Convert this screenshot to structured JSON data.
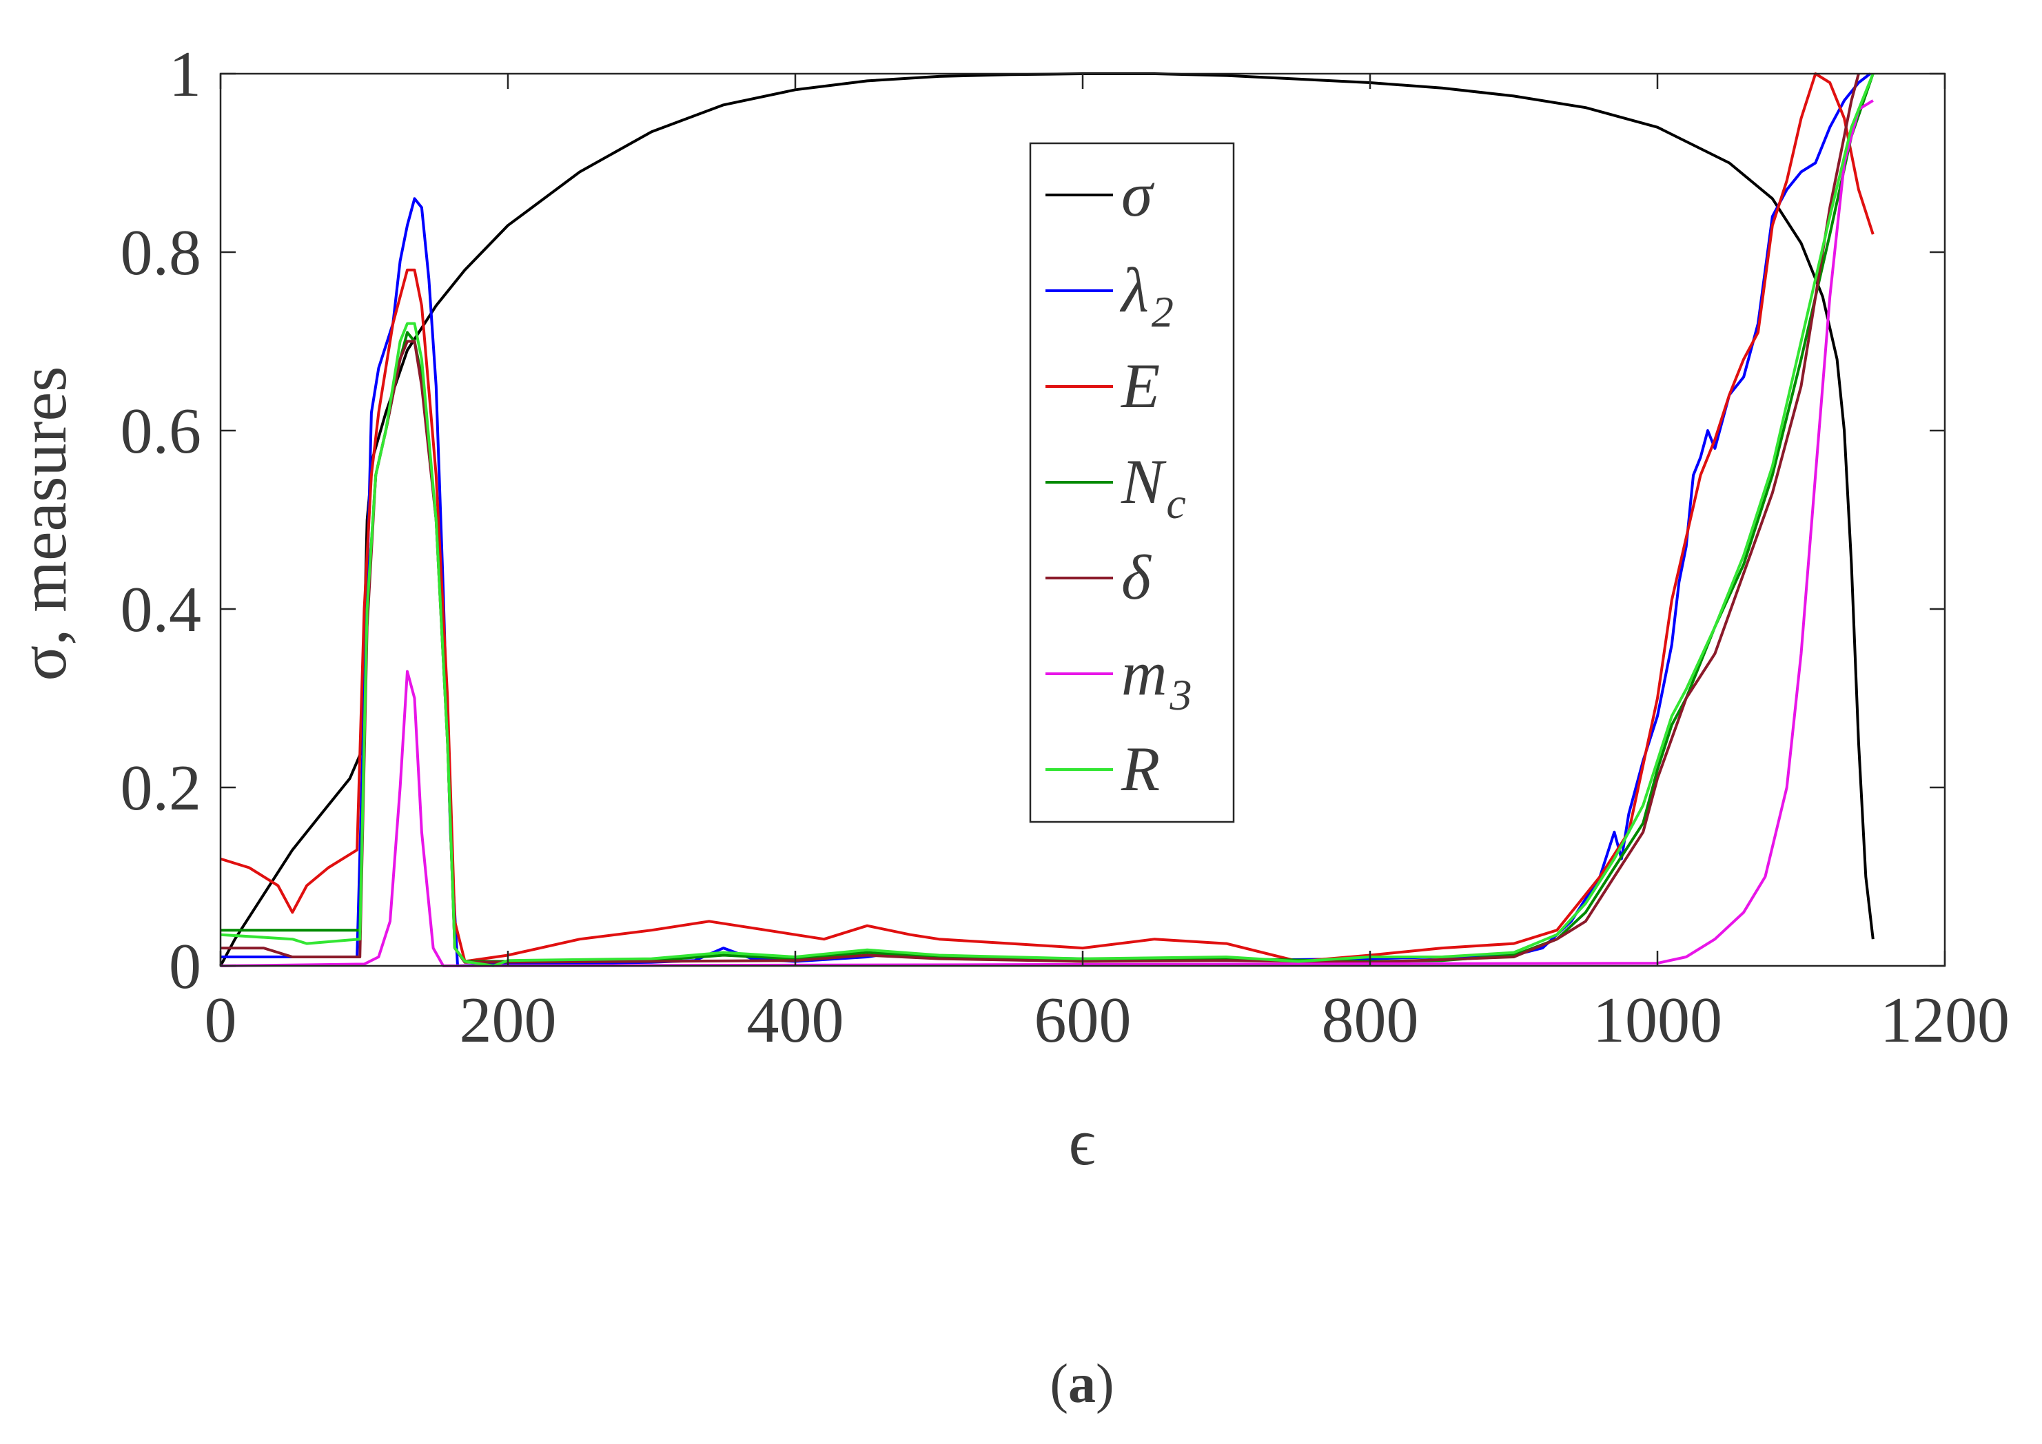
{
  "chart_data": {
    "type": "line",
    "title": "",
    "xlabel": "ϵ",
    "ylabel": "σ, measures",
    "xlim": [
      0,
      1200
    ],
    "ylim": [
      0,
      1
    ],
    "xticks": [
      "0",
      "200",
      "400",
      "600",
      "800",
      "1000",
      "1200"
    ],
    "yticks": [
      "0",
      "0.2",
      "0.4",
      "0.6",
      "0.8",
      "1"
    ],
    "grid": false,
    "legend_position": "top-center",
    "caption": "(a)",
    "caption_letter": "a",
    "series": [
      {
        "name": "σ",
        "sub": "",
        "color": "#000000",
        "points": [
          [
            0,
            0
          ],
          [
            10,
            0.03
          ],
          [
            30,
            0.08
          ],
          [
            50,
            0.13
          ],
          [
            70,
            0.17
          ],
          [
            90,
            0.21
          ],
          [
            98,
            0.24
          ],
          [
            102,
            0.5
          ],
          [
            106,
            0.57
          ],
          [
            115,
            0.62
          ],
          [
            130,
            0.69
          ],
          [
            150,
            0.74
          ],
          [
            170,
            0.78
          ],
          [
            200,
            0.83
          ],
          [
            250,
            0.89
          ],
          [
            300,
            0.935
          ],
          [
            350,
            0.965
          ],
          [
            400,
            0.982
          ],
          [
            450,
            0.992
          ],
          [
            500,
            0.997
          ],
          [
            550,
            0.999
          ],
          [
            600,
            1.0
          ],
          [
            650,
            1.0
          ],
          [
            700,
            0.998
          ],
          [
            750,
            0.994
          ],
          [
            800,
            0.99
          ],
          [
            850,
            0.984
          ],
          [
            900,
            0.975
          ],
          [
            950,
            0.962
          ],
          [
            1000,
            0.94
          ],
          [
            1050,
            0.9
          ],
          [
            1080,
            0.86
          ],
          [
            1100,
            0.81
          ],
          [
            1115,
            0.75
          ],
          [
            1125,
            0.68
          ],
          [
            1130,
            0.6
          ],
          [
            1135,
            0.45
          ],
          [
            1140,
            0.25
          ],
          [
            1145,
            0.1
          ],
          [
            1150,
            0.03
          ]
        ]
      },
      {
        "name": "λ",
        "sub": "2",
        "color": "#0000ff",
        "points": [
          [
            0,
            0.01
          ],
          [
            50,
            0.01
          ],
          [
            95,
            0.01
          ],
          [
            100,
            0.3
          ],
          [
            105,
            0.62
          ],
          [
            110,
            0.67
          ],
          [
            120,
            0.72
          ],
          [
            125,
            0.79
          ],
          [
            130,
            0.83
          ],
          [
            135,
            0.86
          ],
          [
            140,
            0.85
          ],
          [
            145,
            0.77
          ],
          [
            150,
            0.65
          ],
          [
            155,
            0.42
          ],
          [
            160,
            0.15
          ],
          [
            165,
            0
          ],
          [
            200,
            0.002
          ],
          [
            300,
            0.004
          ],
          [
            330,
            0.006
          ],
          [
            350,
            0.02
          ],
          [
            370,
            0.008
          ],
          [
            400,
            0.005
          ],
          [
            450,
            0.01
          ],
          [
            470,
            0.015
          ],
          [
            500,
            0.01
          ],
          [
            600,
            0.008
          ],
          [
            700,
            0.006
          ],
          [
            800,
            0.008
          ],
          [
            900,
            0.012
          ],
          [
            920,
            0.02
          ],
          [
            940,
            0.05
          ],
          [
            960,
            0.1
          ],
          [
            970,
            0.15
          ],
          [
            975,
            0.12
          ],
          [
            980,
            0.17
          ],
          [
            990,
            0.23
          ],
          [
            1000,
            0.28
          ],
          [
            1010,
            0.36
          ],
          [
            1015,
            0.43
          ],
          [
            1020,
            0.47
          ],
          [
            1025,
            0.55
          ],
          [
            1030,
            0.57
          ],
          [
            1035,
            0.6
          ],
          [
            1040,
            0.58
          ],
          [
            1050,
            0.64
          ],
          [
            1060,
            0.66
          ],
          [
            1070,
            0.72
          ],
          [
            1080,
            0.84
          ],
          [
            1090,
            0.87
          ],
          [
            1100,
            0.89
          ],
          [
            1110,
            0.9
          ],
          [
            1120,
            0.94
          ],
          [
            1130,
            0.97
          ],
          [
            1140,
            0.99
          ],
          [
            1148,
            1.0
          ]
        ]
      },
      {
        "name": "E",
        "sub": "",
        "color": "#e01010",
        "points": [
          [
            0,
            0.12
          ],
          [
            20,
            0.11
          ],
          [
            40,
            0.09
          ],
          [
            50,
            0.06
          ],
          [
            60,
            0.09
          ],
          [
            75,
            0.11
          ],
          [
            95,
            0.13
          ],
          [
            100,
            0.4
          ],
          [
            105,
            0.55
          ],
          [
            110,
            0.62
          ],
          [
            120,
            0.72
          ],
          [
            130,
            0.78
          ],
          [
            135,
            0.78
          ],
          [
            140,
            0.74
          ],
          [
            150,
            0.55
          ],
          [
            158,
            0.3
          ],
          [
            163,
            0.05
          ],
          [
            170,
            0.005
          ],
          [
            200,
            0.012
          ],
          [
            250,
            0.03
          ],
          [
            300,
            0.04
          ],
          [
            340,
            0.05
          ],
          [
            380,
            0.04
          ],
          [
            420,
            0.03
          ],
          [
            450,
            0.045
          ],
          [
            480,
            0.035
          ],
          [
            500,
            0.03
          ],
          [
            550,
            0.025
          ],
          [
            600,
            0.02
          ],
          [
            650,
            0.03
          ],
          [
            700,
            0.025
          ],
          [
            750,
            0.005
          ],
          [
            800,
            0.012
          ],
          [
            850,
            0.02
          ],
          [
            900,
            0.025
          ],
          [
            930,
            0.04
          ],
          [
            960,
            0.1
          ],
          [
            980,
            0.15
          ],
          [
            1000,
            0.3
          ],
          [
            1010,
            0.41
          ],
          [
            1020,
            0.48
          ],
          [
            1030,
            0.55
          ],
          [
            1040,
            0.59
          ],
          [
            1050,
            0.64
          ],
          [
            1060,
            0.68
          ],
          [
            1070,
            0.71
          ],
          [
            1080,
            0.83
          ],
          [
            1090,
            0.88
          ],
          [
            1100,
            0.95
          ],
          [
            1110,
            1.0
          ],
          [
            1120,
            0.99
          ],
          [
            1130,
            0.95
          ],
          [
            1140,
            0.87
          ],
          [
            1150,
            0.82
          ]
        ]
      },
      {
        "name": "N",
        "sub": "c",
        "color": "#008a00",
        "points": [
          [
            0,
            0.04
          ],
          [
            50,
            0.04
          ],
          [
            97,
            0.04
          ],
          [
            102,
            0.4
          ],
          [
            108,
            0.55
          ],
          [
            115,
            0.6
          ],
          [
            125,
            0.68
          ],
          [
            130,
            0.71
          ],
          [
            135,
            0.7
          ],
          [
            140,
            0.66
          ],
          [
            150,
            0.5
          ],
          [
            158,
            0.25
          ],
          [
            163,
            0.02
          ],
          [
            170,
            0.005
          ],
          [
            200,
            0.005
          ],
          [
            300,
            0.006
          ],
          [
            350,
            0.012
          ],
          [
            400,
            0.008
          ],
          [
            450,
            0.015
          ],
          [
            500,
            0.01
          ],
          [
            600,
            0.005
          ],
          [
            700,
            0.008
          ],
          [
            800,
            0.005
          ],
          [
            850,
            0.006
          ],
          [
            900,
            0.012
          ],
          [
            930,
            0.03
          ],
          [
            950,
            0.06
          ],
          [
            970,
            0.11
          ],
          [
            990,
            0.16
          ],
          [
            1000,
            0.22
          ],
          [
            1010,
            0.27
          ],
          [
            1020,
            0.3
          ],
          [
            1040,
            0.38
          ],
          [
            1060,
            0.45
          ],
          [
            1080,
            0.55
          ],
          [
            1100,
            0.68
          ],
          [
            1120,
            0.82
          ],
          [
            1135,
            0.93
          ],
          [
            1150,
            1.0
          ]
        ]
      },
      {
        "name": "δ",
        "sub": "",
        "color": "#8b1a2a",
        "points": [
          [
            0,
            0.02
          ],
          [
            30,
            0.02
          ],
          [
            50,
            0.01
          ],
          [
            80,
            0.01
          ],
          [
            97,
            0.01
          ],
          [
            102,
            0.38
          ],
          [
            108,
            0.55
          ],
          [
            115,
            0.6
          ],
          [
            125,
            0.68
          ],
          [
            130,
            0.7
          ],
          [
            135,
            0.7
          ],
          [
            140,
            0.65
          ],
          [
            150,
            0.5
          ],
          [
            158,
            0.25
          ],
          [
            163,
            0.02
          ],
          [
            170,
            0.004
          ],
          [
            300,
            0.005
          ],
          [
            400,
            0.006
          ],
          [
            450,
            0.012
          ],
          [
            500,
            0.008
          ],
          [
            600,
            0.005
          ],
          [
            700,
            0.006
          ],
          [
            800,
            0.004
          ],
          [
            900,
            0.01
          ],
          [
            930,
            0.03
          ],
          [
            950,
            0.05
          ],
          [
            970,
            0.1
          ],
          [
            990,
            0.15
          ],
          [
            1000,
            0.21
          ],
          [
            1020,
            0.3
          ],
          [
            1040,
            0.35
          ],
          [
            1060,
            0.44
          ],
          [
            1080,
            0.53
          ],
          [
            1100,
            0.65
          ],
          [
            1120,
            0.85
          ],
          [
            1135,
            0.97
          ],
          [
            1140,
            1.0
          ]
        ]
      },
      {
        "name": "m",
        "sub": "3",
        "color": "#e815e8",
        "points": [
          [
            0,
            0
          ],
          [
            100,
            0.002
          ],
          [
            110,
            0.01
          ],
          [
            118,
            0.05
          ],
          [
            125,
            0.2
          ],
          [
            130,
            0.33
          ],
          [
            135,
            0.3
          ],
          [
            140,
            0.15
          ],
          [
            148,
            0.02
          ],
          [
            155,
            0
          ],
          [
            1000,
            0.003
          ],
          [
            1020,
            0.01
          ],
          [
            1040,
            0.03
          ],
          [
            1060,
            0.06
          ],
          [
            1075,
            0.1
          ],
          [
            1090,
            0.2
          ],
          [
            1100,
            0.35
          ],
          [
            1110,
            0.55
          ],
          [
            1120,
            0.75
          ],
          [
            1130,
            0.9
          ],
          [
            1140,
            0.96
          ],
          [
            1150,
            0.97
          ]
        ]
      },
      {
        "name": "R",
        "sub": "",
        "color": "#33e633",
        "points": [
          [
            0,
            0.035
          ],
          [
            50,
            0.03
          ],
          [
            60,
            0.025
          ],
          [
            97,
            0.03
          ],
          [
            102,
            0.4
          ],
          [
            108,
            0.55
          ],
          [
            115,
            0.6
          ],
          [
            125,
            0.7
          ],
          [
            130,
            0.72
          ],
          [
            135,
            0.72
          ],
          [
            140,
            0.68
          ],
          [
            150,
            0.5
          ],
          [
            158,
            0.25
          ],
          [
            163,
            0.02
          ],
          [
            170,
            0.005
          ],
          [
            190,
            0
          ],
          [
            200,
            0.006
          ],
          [
            300,
            0.008
          ],
          [
            350,
            0.015
          ],
          [
            400,
            0.01
          ],
          [
            450,
            0.018
          ],
          [
            500,
            0.012
          ],
          [
            600,
            0.008
          ],
          [
            700,
            0.01
          ],
          [
            750,
            0.005
          ],
          [
            800,
            0.01
          ],
          [
            850,
            0.01
          ],
          [
            900,
            0.015
          ],
          [
            930,
            0.035
          ],
          [
            950,
            0.07
          ],
          [
            970,
            0.12
          ],
          [
            990,
            0.18
          ],
          [
            1000,
            0.23
          ],
          [
            1010,
            0.28
          ],
          [
            1020,
            0.31
          ],
          [
            1040,
            0.38
          ],
          [
            1060,
            0.46
          ],
          [
            1080,
            0.56
          ],
          [
            1100,
            0.7
          ],
          [
            1120,
            0.84
          ],
          [
            1135,
            0.94
          ],
          [
            1150,
            1.0
          ]
        ]
      }
    ]
  }
}
